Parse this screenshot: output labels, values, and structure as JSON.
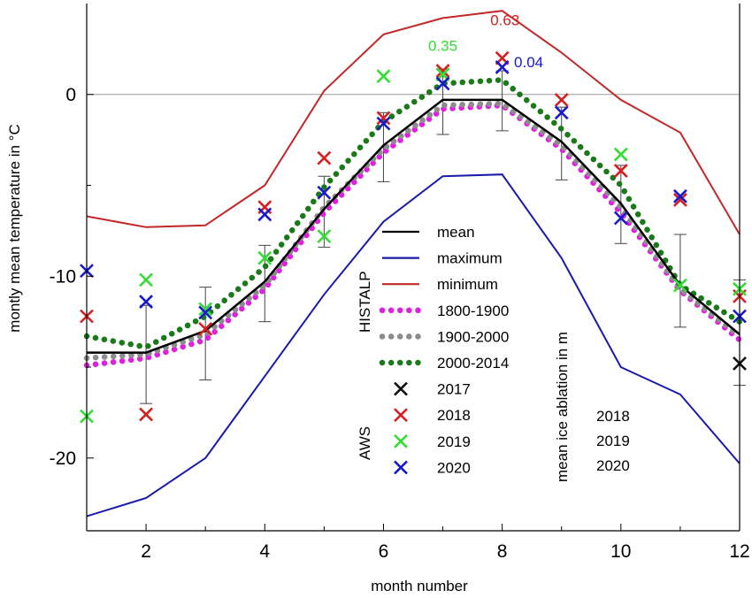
{
  "chart_data": {
    "type": "line",
    "xlabel": "month number",
    "ylabel": "montly mean temperature in °C",
    "xlim": [
      1,
      12
    ],
    "ylim": [
      -24,
      5
    ],
    "x_ticks": [
      2,
      4,
      6,
      8,
      10,
      12
    ],
    "y_ticks": [
      0,
      -10,
      -20
    ],
    "reference_line": 0,
    "grid": false,
    "x": [
      1,
      2,
      3,
      4,
      5,
      6,
      7,
      8,
      9,
      10,
      11,
      12
    ],
    "lines": [
      {
        "name": "mean",
        "color": "#000000",
        "style": "solid",
        "values": [
          -14.2,
          -14.2,
          -13.0,
          -10.3,
          -6.3,
          -2.8,
          -0.3,
          -0.3,
          -2.6,
          -6.0,
          -10.5,
          -13.2
        ]
      },
      {
        "name": "maximum",
        "color": "#1a1aaa",
        "style": "solid",
        "values": [
          -23.2,
          -22.2,
          -20.0,
          -15.5,
          -11.0,
          -7.0,
          -4.5,
          -4.4,
          -9.0,
          -15.0,
          -16.5,
          -20.3
        ]
      },
      {
        "name": "minimum",
        "color": "#c0282a",
        "style": "solid",
        "values": [
          -6.7,
          -7.3,
          -7.2,
          -5.0,
          0.2,
          3.3,
          4.2,
          4.6,
          2.3,
          -0.3,
          -2.1,
          -7.7
        ]
      },
      {
        "name": "1800-1900",
        "color": "#e020e0",
        "style": "dotted",
        "values": [
          -14.9,
          -14.5,
          -13.5,
          -10.7,
          -6.5,
          -3.2,
          -0.8,
          -0.6,
          -3.0,
          -6.5,
          -10.8,
          -13.5
        ]
      },
      {
        "name": "1900-2000",
        "color": "#8c8c8c",
        "style": "dotted",
        "values": [
          -14.5,
          -14.3,
          -13.2,
          -10.5,
          -6.2,
          -3.0,
          -0.6,
          -0.5,
          -2.8,
          -6.2,
          -10.7,
          -13.3
        ]
      },
      {
        "name": "2000-2014",
        "color": "#1a7a1a",
        "style": "dotted",
        "values": [
          -13.3,
          -13.9,
          -12.2,
          -9.5,
          -5.1,
          -1.5,
          0.6,
          0.8,
          -1.9,
          -5.0,
          -10.5,
          -12.5
        ]
      }
    ],
    "error_bars": {
      "x": [
        2,
        3,
        4,
        5,
        6,
        7,
        8,
        9,
        10,
        11,
        12
      ],
      "low": [
        -17.0,
        -15.7,
        -12.5,
        -8.4,
        -4.8,
        -2.2,
        -2.0,
        -4.7,
        -8.2,
        -12.8,
        -16.0
      ],
      "high": [
        -11.6,
        -10.6,
        -8.3,
        -4.5,
        -1.0,
        1.4,
        1.3,
        -0.7,
        -3.9,
        -7.7,
        -10.2
      ]
    },
    "markers": [
      {
        "name": "2017",
        "color": "#111111",
        "points": [
          [
            12,
            -14.8
          ]
        ]
      },
      {
        "name": "2018",
        "color": "#d42020",
        "points": [
          [
            1,
            -12.2
          ],
          [
            2,
            -17.6
          ],
          [
            3,
            -12.9
          ],
          [
            4,
            -6.2
          ],
          [
            5,
            -3.5
          ],
          [
            6,
            -1.3
          ],
          [
            7,
            1.3
          ],
          [
            8,
            2.0
          ],
          [
            9,
            -0.3
          ],
          [
            10,
            -4.2
          ],
          [
            11,
            -5.8
          ],
          [
            12,
            -11.1
          ]
        ]
      },
      {
        "name": "2019",
        "color": "#33dd33",
        "points": [
          [
            1,
            -17.7
          ],
          [
            2,
            -10.2
          ],
          [
            3,
            -11.8
          ],
          [
            4,
            -9.0
          ],
          [
            5,
            -7.8
          ],
          [
            6,
            1.0
          ],
          [
            7,
            1.1
          ],
          [
            10,
            -3.3
          ],
          [
            11,
            -10.5
          ],
          [
            12,
            -10.7
          ]
        ]
      },
      {
        "name": "2020",
        "color": "#1818cc",
        "points": [
          [
            1,
            -9.7
          ],
          [
            2,
            -11.4
          ],
          [
            3,
            -12.0
          ],
          [
            4,
            -6.6
          ],
          [
            5,
            -5.4
          ],
          [
            6,
            -1.6
          ],
          [
            7,
            0.6
          ],
          [
            8,
            1.5
          ],
          [
            9,
            -1.0
          ],
          [
            10,
            -6.8
          ],
          [
            11,
            -5.6
          ],
          [
            12,
            -12.2
          ]
        ]
      }
    ],
    "annotations": [
      {
        "text": "0.35",
        "color": "#33dd33",
        "x": 7,
        "y": 2.4,
        "anchor": "middle"
      },
      {
        "text": "0.63",
        "color": "#d42020",
        "x": 7.8,
        "y": 3.8,
        "anchor": "start"
      },
      {
        "text": "0.04",
        "color": "#1818cc",
        "x": 8.2,
        "y": 1.5,
        "anchor": "start"
      }
    ],
    "legend": {
      "placement": "center-right",
      "groups": [
        {
          "label": "HISTALP",
          "entries": [
            "mean",
            "maximum",
            "minimum",
            "1800-1900",
            "1900-2000",
            "2000-2014"
          ]
        },
        {
          "label": "AWS",
          "entries": [
            "2017",
            "2018",
            "2019",
            "2020"
          ]
        }
      ],
      "ablation_title": "mean ice ablation in m",
      "ablation_entries": [
        {
          "label": "2018",
          "color": "#d42020"
        },
        {
          "label": "2019",
          "color": "#33dd33"
        },
        {
          "label": "2020",
          "color": "#1818cc"
        }
      ]
    }
  }
}
